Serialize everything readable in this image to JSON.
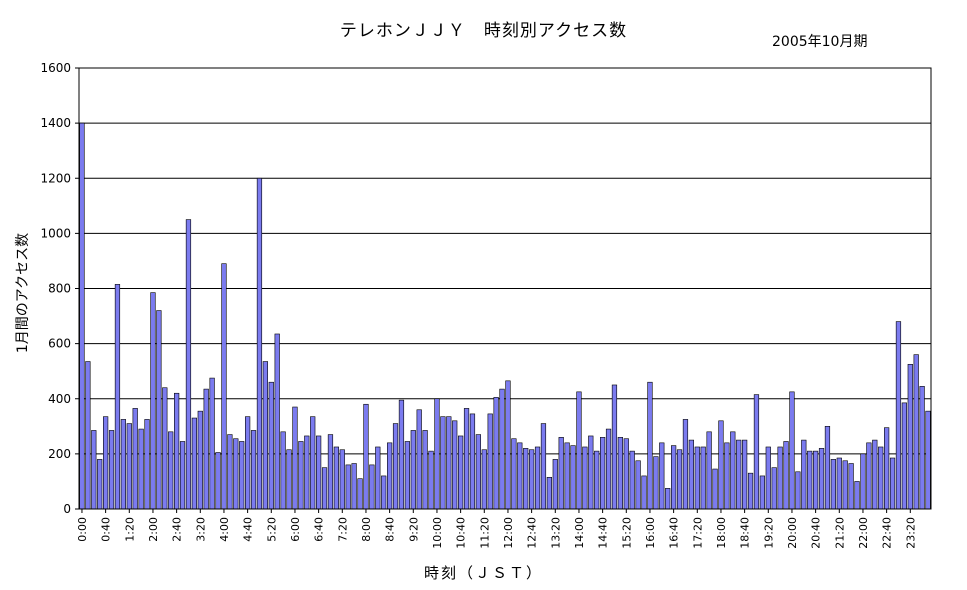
{
  "chart_data": {
    "type": "bar",
    "title": "テレホンＪＪＹ　時刻別アクセス数",
    "subtitle": "2005年10月期",
    "xlabel": "時刻（ＪＳＴ）",
    "ylabel": "1月間のアクセス数",
    "ylim": [
      0,
      1600
    ],
    "yticks": [
      0,
      200,
      400,
      600,
      800,
      1000,
      1200,
      1400,
      1600
    ],
    "xtick_labels": [
      "0:00",
      "0:40",
      "1:20",
      "2:00",
      "2:40",
      "3:20",
      "4:00",
      "4:40",
      "5:20",
      "6:00",
      "6:40",
      "7:20",
      "8:00",
      "8:40",
      "9:20",
      "10:00",
      "10:40",
      "11:20",
      "12:00",
      "12:40",
      "13:20",
      "14:00",
      "14:40",
      "15:20",
      "16:00",
      "16:40",
      "17:20",
      "18:00",
      "18:40",
      "19:20",
      "20:00",
      "20:40",
      "21:20",
      "22:00",
      "22:40",
      "23:20"
    ],
    "xtick_every": 4,
    "grid": true,
    "bar_color": "#7b7bef",
    "values": [
      1400,
      535,
      285,
      180,
      335,
      285,
      815,
      325,
      310,
      365,
      290,
      325,
      785,
      720,
      440,
      280,
      420,
      245,
      1050,
      330,
      355,
      435,
      475,
      205,
      890,
      270,
      255,
      245,
      335,
      285,
      1200,
      535,
      460,
      635,
      280,
      215,
      370,
      245,
      265,
      335,
      265,
      150,
      270,
      225,
      215,
      160,
      165,
      110,
      380,
      160,
      225,
      120,
      240,
      310,
      395,
      245,
      285,
      360,
      285,
      210,
      400,
      335,
      335,
      320,
      265,
      365,
      345,
      270,
      215,
      345,
      405,
      435,
      465,
      255,
      240,
      220,
      215,
      225,
      310,
      115,
      180,
      260,
      240,
      230,
      425,
      225,
      265,
      210,
      260,
      290,
      450,
      260,
      255,
      210,
      175,
      120,
      460,
      190,
      240,
      75,
      230,
      215,
      325,
      250,
      225,
      225,
      280,
      145,
      320,
      240,
      280,
      250,
      250,
      130,
      415,
      120,
      225,
      150,
      225,
      245,
      425,
      135,
      250,
      210,
      210,
      220,
      300,
      180,
      185,
      175,
      165,
      100,
      200,
      240,
      250,
      225,
      295,
      185,
      680,
      385,
      525,
      560,
      445,
      355
    ]
  }
}
